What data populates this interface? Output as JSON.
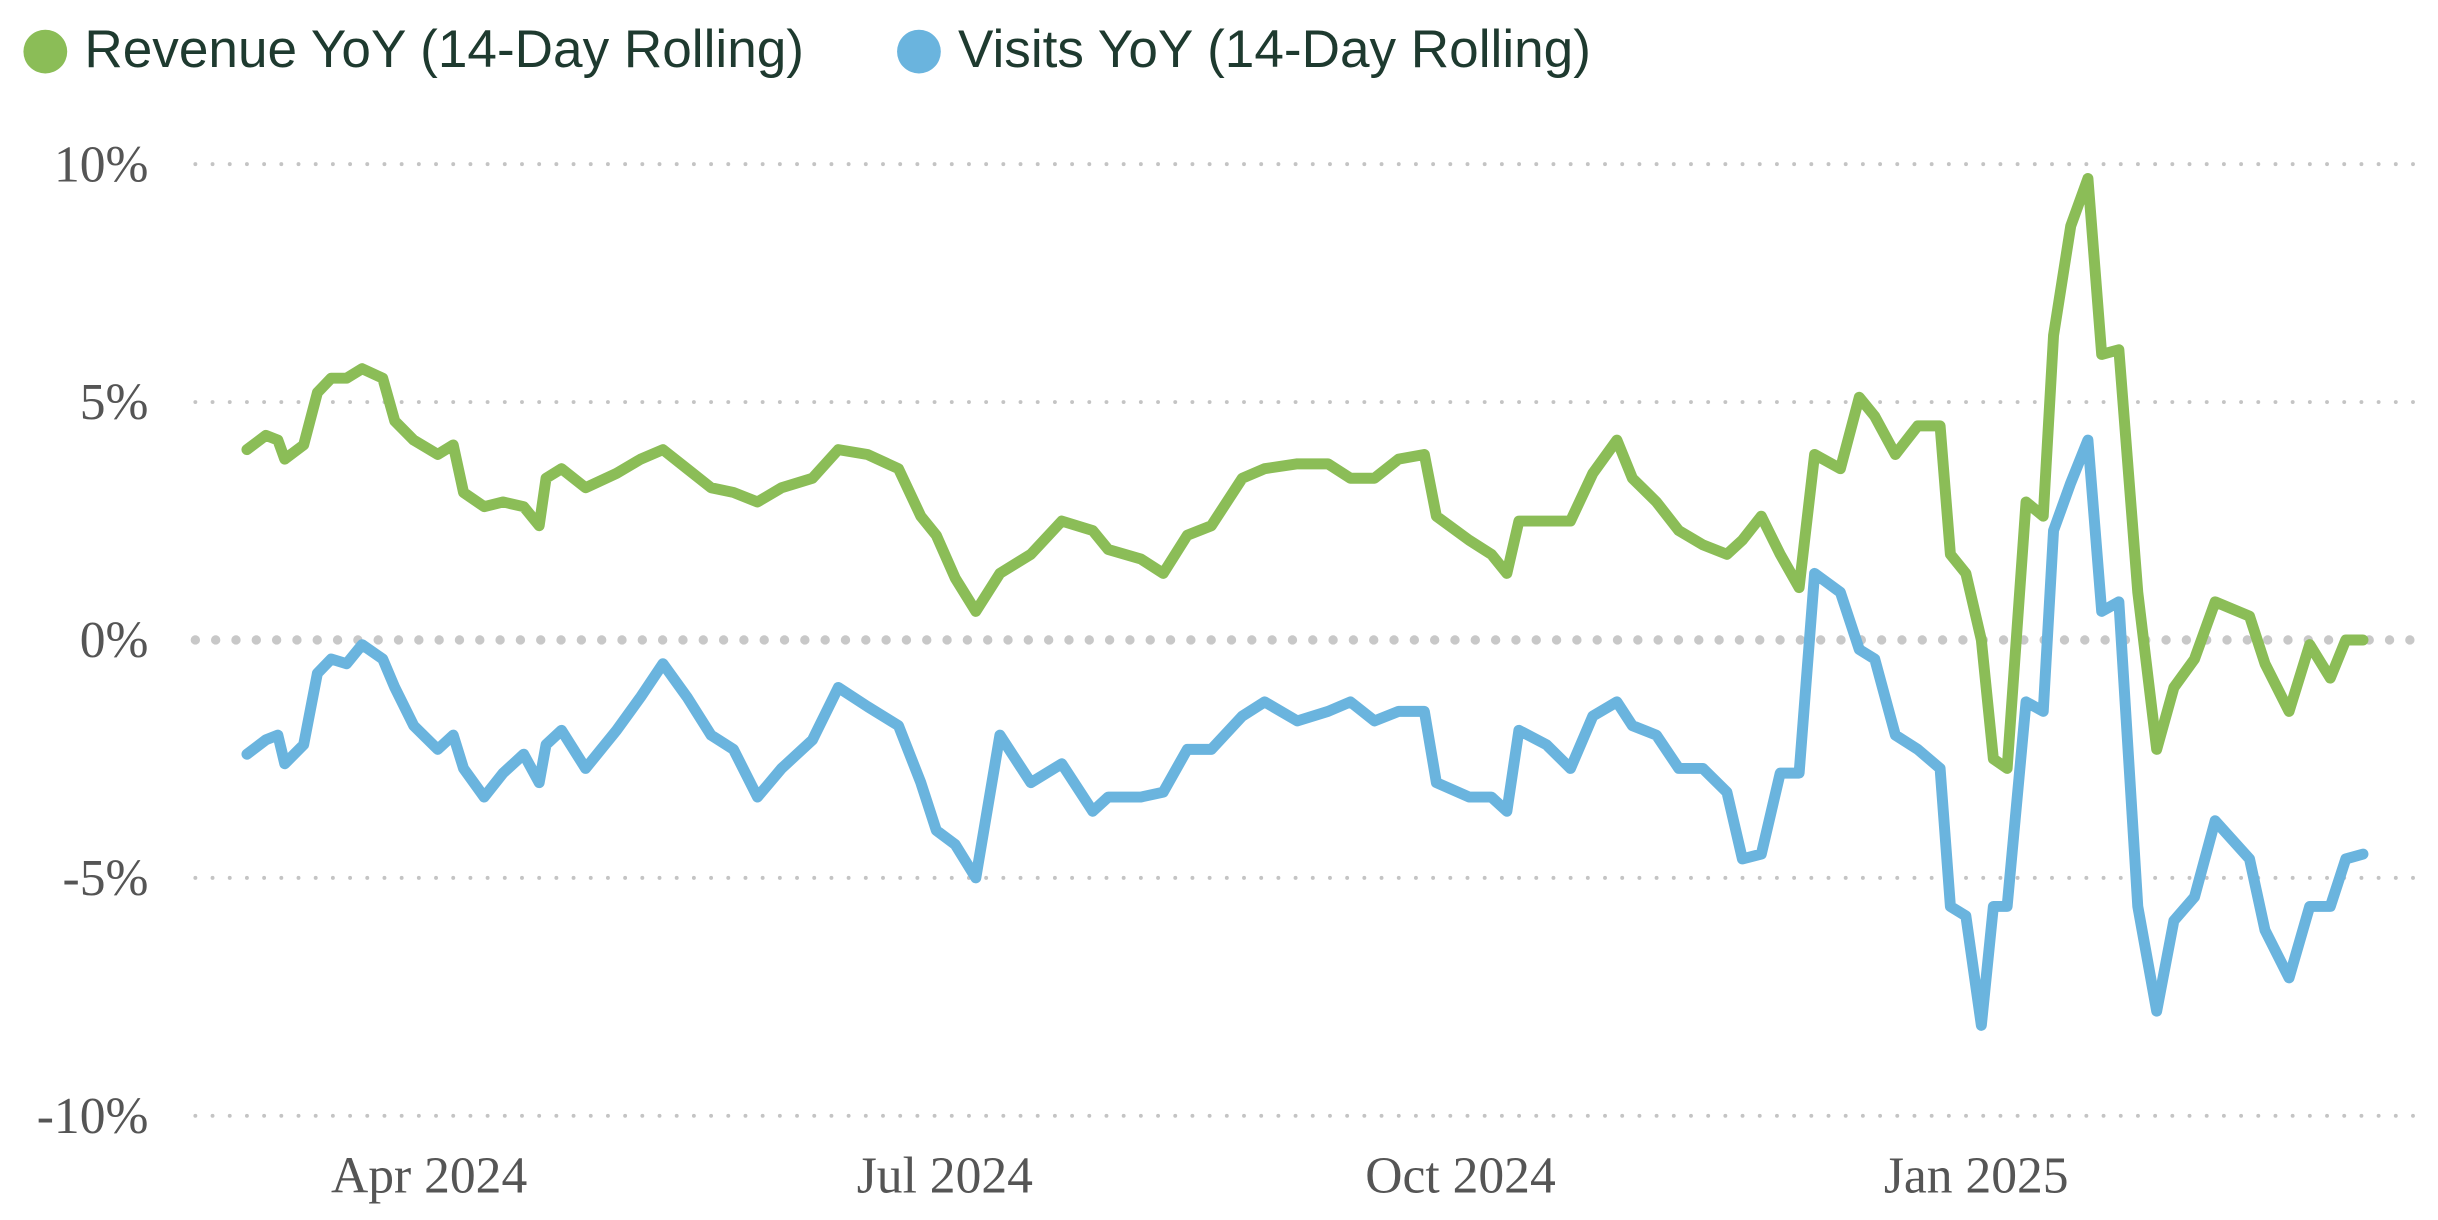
{
  "chart_data": {
    "type": "line",
    "xlim": [
      1.64,
      14.55
    ],
    "xticks": [
      {
        "value": 3,
        "label": "Apr 2024"
      },
      {
        "value": 6,
        "label": "Jul 2024"
      },
      {
        "value": 9,
        "label": "Oct 2024"
      },
      {
        "value": 12,
        "label": "Jan 2025"
      }
    ],
    "ylim": [
      -10.3,
      10.5
    ],
    "yticks": [
      {
        "value": 10,
        "label": "10%"
      },
      {
        "value": 5,
        "label": "5%"
      },
      {
        "value": 0,
        "label": "0%"
      },
      {
        "value": -5,
        "label": "-5%"
      },
      {
        "value": -10,
        "label": "-10%"
      }
    ],
    "grid": true,
    "legend": "top-left",
    "x": [
      1.94,
      2.05,
      2.12,
      2.16,
      2.27,
      2.35,
      2.43,
      2.52,
      2.61,
      2.73,
      2.8,
      2.91,
      3.05,
      3.14,
      3.2,
      3.32,
      3.43,
      3.55,
      3.64,
      3.68,
      3.77,
      3.91,
      4.09,
      4.23,
      4.36,
      4.5,
      4.64,
      4.77,
      4.91,
      5.05,
      5.23,
      5.38,
      5.55,
      5.73,
      5.86,
      5.95,
      6.06,
      6.18,
      6.32,
      6.5,
      6.68,
      6.86,
      6.95,
      7.14,
      7.27,
      7.41,
      7.55,
      7.73,
      7.86,
      8.05,
      8.23,
      8.36,
      8.5,
      8.64,
      8.79,
      8.86,
      9.05,
      9.18,
      9.27,
      9.34,
      9.5,
      9.64,
      9.77,
      9.91,
      10.0,
      10.14,
      10.27,
      10.41,
      10.55,
      10.64,
      10.75,
      10.86,
      10.97,
      11.06,
      11.21,
      11.32,
      11.41,
      11.53,
      11.66,
      11.79,
      11.85,
      11.94,
      12.03,
      12.1,
      12.18,
      12.29,
      12.39,
      12.45,
      12.55,
      12.65,
      12.73,
      12.83,
      12.94,
      13.05,
      13.15,
      13.27,
      13.39,
      13.59,
      13.68,
      13.82,
      13.94,
      14.06,
      14.15,
      14.25
    ],
    "series": [
      {
        "name": "Revenue YoY (14-Day Rolling)",
        "color": "#8bbd57",
        "values": [
          4.0,
          4.3,
          4.2,
          3.8,
          4.1,
          5.2,
          5.5,
          5.5,
          5.7,
          5.5,
          4.6,
          4.2,
          3.9,
          4.1,
          3.1,
          2.8,
          2.9,
          2.8,
          2.4,
          3.4,
          3.6,
          3.2,
          3.5,
          3.8,
          4.0,
          3.6,
          3.2,
          3.1,
          2.9,
          3.2,
          3.4,
          4.0,
          3.9,
          3.6,
          2.6,
          2.2,
          1.3,
          0.6,
          1.4,
          1.8,
          2.5,
          2.3,
          1.9,
          1.7,
          1.4,
          2.2,
          2.4,
          3.4,
          3.6,
          3.7,
          3.7,
          3.4,
          3.4,
          3.8,
          3.9,
          2.6,
          2.1,
          1.8,
          1.4,
          2.5,
          2.5,
          2.5,
          3.5,
          4.2,
          3.4,
          2.9,
          2.3,
          2.0,
          1.8,
          2.1,
          2.6,
          1.8,
          1.1,
          3.9,
          3.6,
          5.1,
          4.7,
          3.9,
          4.5,
          4.5,
          1.8,
          1.4,
          0.0,
          -2.5,
          -2.7,
          2.9,
          2.6,
          6.4,
          8.7,
          9.7,
          6.0,
          6.1,
          1.0,
          -2.3,
          -1.0,
          -0.4,
          0.8,
          0.5,
          -0.5,
          -1.5,
          -0.1,
          -0.8,
          0.0,
          0.0
        ]
      },
      {
        "name": "Visits YoY (14-Day Rolling)",
        "color": "#6ab4de",
        "values": [
          -2.4,
          -2.1,
          -2.0,
          -2.6,
          -2.2,
          -0.7,
          -0.4,
          -0.5,
          -0.1,
          -0.4,
          -1.0,
          -1.8,
          -2.3,
          -2.0,
          -2.7,
          -3.3,
          -2.8,
          -2.4,
          -3.0,
          -2.2,
          -1.9,
          -2.7,
          -1.9,
          -1.2,
          -0.5,
          -1.2,
          -2.0,
          -2.3,
          -3.3,
          -2.7,
          -2.1,
          -1.0,
          -1.4,
          -1.8,
          -3.0,
          -4.0,
          -4.3,
          -5.0,
          -2.0,
          -3.0,
          -2.6,
          -3.6,
          -3.3,
          -3.3,
          -3.2,
          -2.3,
          -2.3,
          -1.6,
          -1.3,
          -1.7,
          -1.5,
          -1.3,
          -1.7,
          -1.5,
          -1.5,
          -3.0,
          -3.3,
          -3.3,
          -3.6,
          -1.9,
          -2.2,
          -2.7,
          -1.6,
          -1.3,
          -1.8,
          -2.0,
          -2.7,
          -2.7,
          -3.2,
          -4.6,
          -4.5,
          -2.8,
          -2.8,
          1.4,
          1.0,
          -0.2,
          -0.4,
          -2.0,
          -2.3,
          -2.7,
          -5.6,
          -5.8,
          -8.1,
          -5.6,
          -5.6,
          -1.3,
          -1.5,
          2.3,
          3.3,
          4.2,
          0.6,
          0.8,
          -5.6,
          -7.8,
          -5.9,
          -5.4,
          -3.8,
          -4.6,
          -6.1,
          -7.1,
          -5.6,
          -5.6,
          -4.6,
          -4.5
        ]
      }
    ]
  }
}
